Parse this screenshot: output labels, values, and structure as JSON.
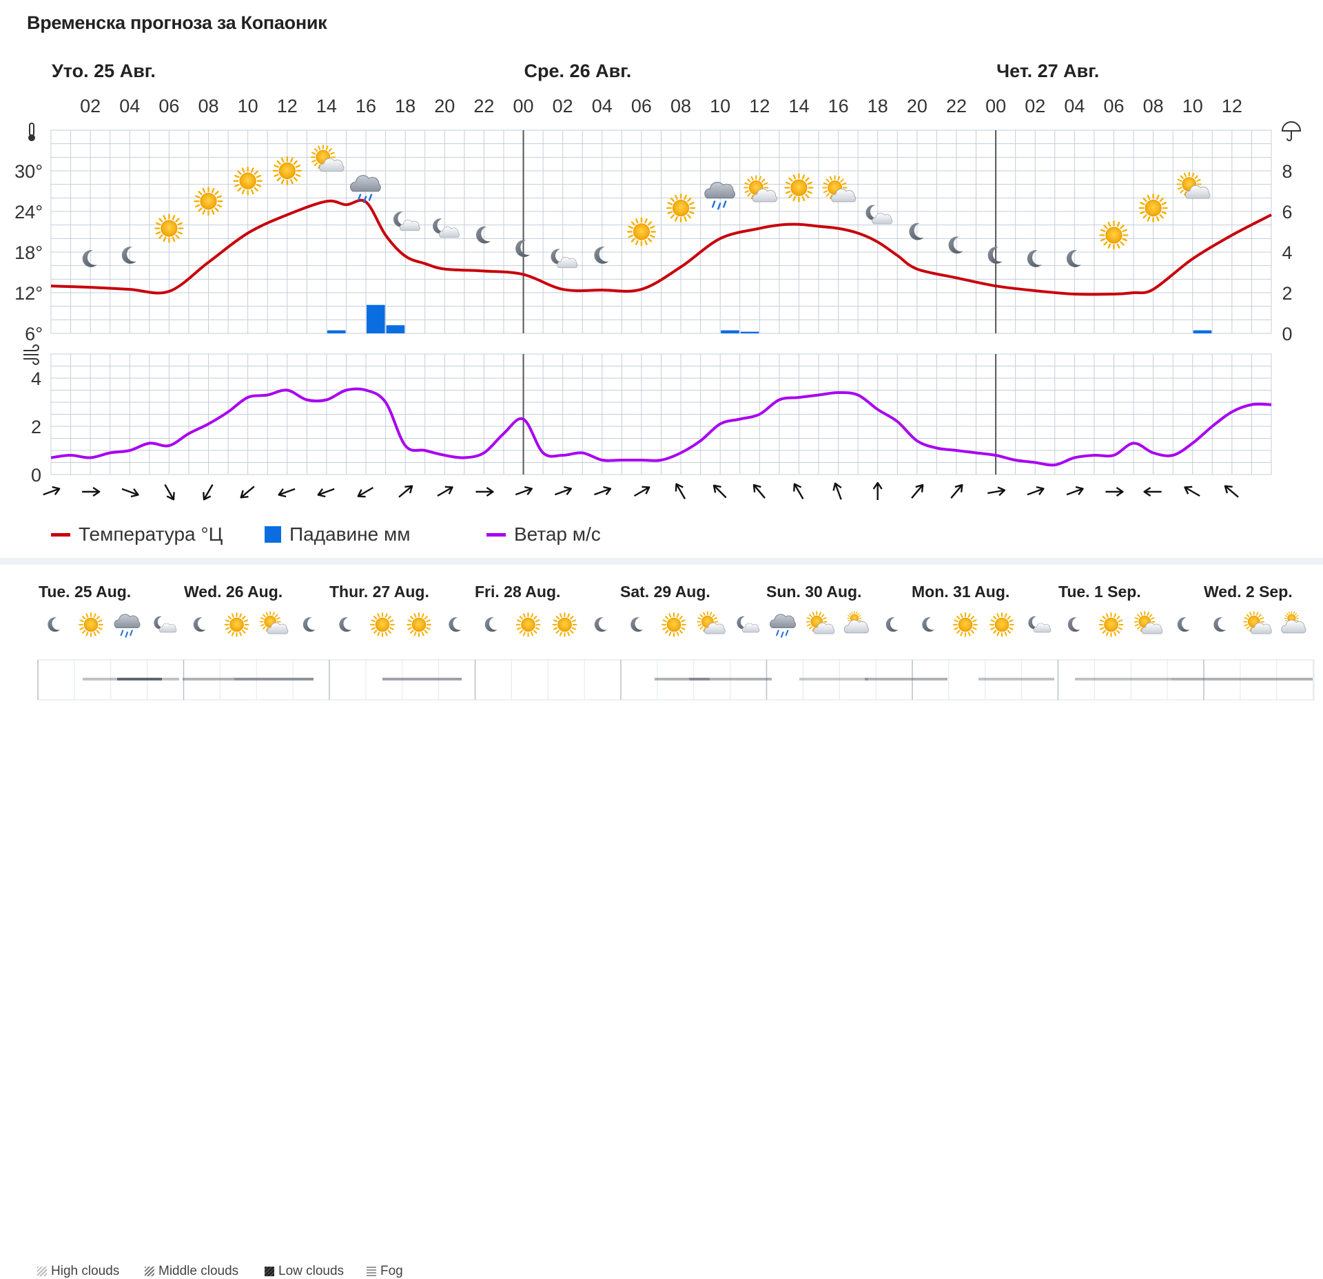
{
  "title": "Временска прогноза за Копаоник",
  "colors": {
    "temperature": "#c8000a",
    "precipitation": "#0a6ee0",
    "wind": "#a800f0",
    "grid": "#c5cdd8",
    "day_separator": "#555555"
  },
  "main_days": [
    {
      "label": "Уто. 25 Авг.",
      "start_hour": 0
    },
    {
      "label": "Сре. 26 Авг.",
      "start_hour": 24
    },
    {
      "label": "Чет. 27 Авг.",
      "start_hour": 48
    }
  ],
  "hour_labels": [
    "02",
    "04",
    "06",
    "08",
    "10",
    "12",
    "14",
    "16",
    "18",
    "20",
    "22",
    "00",
    "02",
    "04",
    "06",
    "08",
    "10",
    "12",
    "14",
    "16",
    "18",
    "20",
    "22",
    "00",
    "02",
    "04",
    "06",
    "08",
    "10",
    "12"
  ],
  "legend": {
    "temperature": "Температура °Ц",
    "precipitation": "Падавине мм",
    "wind": "Ветар м/с"
  },
  "chart_data": [
    {
      "type": "line",
      "title": "Temperature / Precipitation",
      "x_unit": "hours from 25 Aug 00:00",
      "series": [
        {
          "name": "Температура °Ц",
          "x": [
            0,
            2,
            4,
            6,
            8,
            10,
            12,
            14,
            15,
            16,
            17,
            18,
            19,
            20,
            22,
            24,
            26,
            28,
            30,
            32,
            34,
            36,
            37,
            38,
            39,
            40,
            41,
            42,
            43,
            44,
            46,
            48,
            50,
            52,
            54,
            55,
            56,
            58,
            60,
            62
          ],
          "values": [
            13,
            12.8,
            12.5,
            12.2,
            16.5,
            20.8,
            23.5,
            25.5,
            25.0,
            25.4,
            20.5,
            17.4,
            16.3,
            15.5,
            15.2,
            14.7,
            12.5,
            12.4,
            12.5,
            15.8,
            20,
            21.5,
            22.0,
            22.1,
            21.8,
            21.5,
            20.8,
            19.5,
            17.5,
            15.5,
            14.2,
            13,
            12.3,
            11.8,
            11.8,
            12,
            12.5,
            17,
            20.5,
            23.5
          ]
        },
        {
          "name": "Падавине мм",
          "type": "bar",
          "x": [
            14,
            16,
            17,
            34,
            35,
            58
          ],
          "values": [
            0.15,
            1.4,
            0.4,
            0.15,
            0.08,
            0.15
          ]
        }
      ],
      "yaxis_left": {
        "ticks": [
          "30°",
          "24°",
          "18°",
          "12°",
          "6°"
        ],
        "range": [
          6,
          36
        ]
      },
      "yaxis_right": {
        "ticks": [
          "8",
          "6",
          "4",
          "2",
          "0"
        ],
        "range": [
          0,
          10
        ]
      },
      "icons": [
        {
          "x": 2,
          "y": 17,
          "icon": "moon-icon"
        },
        {
          "x": 4,
          "y": 17.5,
          "icon": "moon-icon"
        },
        {
          "x": 6,
          "y": 21.5,
          "icon": "sun-icon"
        },
        {
          "x": 8,
          "y": 25.5,
          "icon": "sun-icon"
        },
        {
          "x": 10,
          "y": 28.5,
          "icon": "sun-icon"
        },
        {
          "x": 12,
          "y": 30,
          "icon": "sun-icon"
        },
        {
          "x": 14,
          "y": 31.5,
          "icon": "partly-cloudy-icon"
        },
        {
          "x": 16,
          "y": 27.5,
          "icon": "rain-icon"
        },
        {
          "x": 18,
          "y": 22.5,
          "icon": "moon-cloud-icon"
        },
        {
          "x": 20,
          "y": 21.5,
          "icon": "moon-cloud-icon"
        },
        {
          "x": 22,
          "y": 20.5,
          "icon": "moon-icon"
        },
        {
          "x": 24,
          "y": 18.5,
          "icon": "moon-icon"
        },
        {
          "x": 26,
          "y": 17,
          "icon": "moon-cloud-icon"
        },
        {
          "x": 28,
          "y": 17.5,
          "icon": "moon-icon"
        },
        {
          "x": 30,
          "y": 21,
          "icon": "sun-icon"
        },
        {
          "x": 32,
          "y": 24.5,
          "icon": "sun-icon"
        },
        {
          "x": 34,
          "y": 26.5,
          "icon": "rain-icon"
        },
        {
          "x": 36,
          "y": 27,
          "icon": "partly-cloudy-icon"
        },
        {
          "x": 38,
          "y": 27.5,
          "icon": "sun-icon"
        },
        {
          "x": 40,
          "y": 27,
          "icon": "partly-cloudy-icon"
        },
        {
          "x": 42,
          "y": 23.5,
          "icon": "moon-cloud-icon"
        },
        {
          "x": 44,
          "y": 21,
          "icon": "moon-icon"
        },
        {
          "x": 46,
          "y": 19,
          "icon": "moon-icon"
        },
        {
          "x": 48,
          "y": 17.5,
          "icon": "moon-icon"
        },
        {
          "x": 50,
          "y": 17,
          "icon": "moon-icon"
        },
        {
          "x": 52,
          "y": 17,
          "icon": "moon-icon"
        },
        {
          "x": 54,
          "y": 20.5,
          "icon": "sun-icon"
        },
        {
          "x": 56,
          "y": 24.5,
          "icon": "sun-icon"
        },
        {
          "x": 58,
          "y": 27.5,
          "icon": "partly-cloudy-icon"
        }
      ]
    },
    {
      "type": "line",
      "title": "Wind",
      "series": [
        {
          "name": "Ветар м/с",
          "x": [
            0,
            1,
            2,
            3,
            4,
            5,
            6,
            7,
            8,
            9,
            10,
            11,
            12,
            13,
            14,
            15,
            16,
            17,
            18,
            19,
            20,
            21,
            22,
            23,
            24,
            25,
            26,
            27,
            28,
            29,
            30,
            31,
            32,
            33,
            34,
            35,
            36,
            37,
            38,
            39,
            40,
            41,
            42,
            43,
            44,
            45,
            46,
            47,
            48,
            49,
            50,
            51,
            52,
            53,
            54,
            55,
            56,
            57,
            58,
            59,
            60,
            61,
            62
          ],
          "values": [
            0.7,
            0.8,
            0.7,
            0.9,
            1.0,
            1.3,
            1.2,
            1.7,
            2.1,
            2.6,
            3.2,
            3.3,
            3.5,
            3.1,
            3.1,
            3.5,
            3.5,
            3.0,
            1.2,
            1.0,
            0.8,
            0.7,
            0.9,
            1.7,
            2.3,
            0.9,
            0.8,
            0.9,
            0.6,
            0.6,
            0.6,
            0.6,
            0.9,
            1.4,
            2.1,
            2.3,
            2.5,
            3.1,
            3.2,
            3.3,
            3.4,
            3.3,
            2.7,
            2.2,
            1.4,
            1.1,
            1.0,
            0.9,
            0.8,
            0.6,
            0.5,
            0.4,
            0.7,
            0.8,
            0.8,
            1.3,
            0.9,
            0.8,
            1.3,
            2.0,
            2.6,
            2.9,
            2.9
          ]
        }
      ],
      "yaxis_left": {
        "ticks": [
          "4",
          "2",
          "0"
        ],
        "range": [
          0,
          5
        ]
      }
    }
  ],
  "wind_directions_deg": [
    250,
    270,
    290,
    330,
    30,
    50,
    70,
    70,
    60,
    230,
    240,
    270,
    250,
    250,
    250,
    240,
    150,
    135,
    140,
    150,
    160,
    180,
    220,
    220,
    260,
    250,
    250,
    270,
    90,
    120,
    130
  ],
  "bottom_days": [
    "Tue. 25 Aug.",
    "Wed. 26 Aug.",
    "Thur. 27 Aug.",
    "Fri. 28 Aug.",
    "Sat. 29 Aug.",
    "Sun. 30 Aug.",
    "Mon. 31 Aug.",
    "Tue. 1 Sep.",
    "Wed. 2 Sep."
  ],
  "bottom_icons": [
    [
      "moon-icon",
      "sun-icon",
      "rain-icon",
      "moon-cloud-icon"
    ],
    [
      "moon-icon",
      "sun-icon",
      "partly-cloudy-icon",
      "moon-icon"
    ],
    [
      "moon-icon",
      "sun-icon",
      "sun-icon",
      "moon-icon"
    ],
    [
      "moon-icon",
      "sun-icon",
      "sun-icon",
      "moon-icon"
    ],
    [
      "moon-icon",
      "sun-icon",
      "partly-cloudy-icon",
      "moon-cloud-icon"
    ],
    [
      "rain-icon",
      "partly-cloudy-icon",
      "cloud-icon",
      "moon-icon"
    ],
    [
      "moon-icon",
      "sun-icon",
      "sun-icon",
      "moon-cloud-icon"
    ],
    [
      "moon-icon",
      "sun-icon",
      "partly-cloudy-icon",
      "moon-icon"
    ],
    [
      "moon-icon",
      "partly-cloudy-icon",
      "cloud-icon"
    ]
  ],
  "cloud_legend": [
    {
      "label": "High clouds",
      "icon": "high-clouds-icon"
    },
    {
      "label": "Middle clouds",
      "icon": "middle-clouds-icon"
    },
    {
      "label": "Low clouds",
      "icon": "low-clouds-icon"
    },
    {
      "label": "Fog",
      "icon": "fog-icon"
    }
  ]
}
